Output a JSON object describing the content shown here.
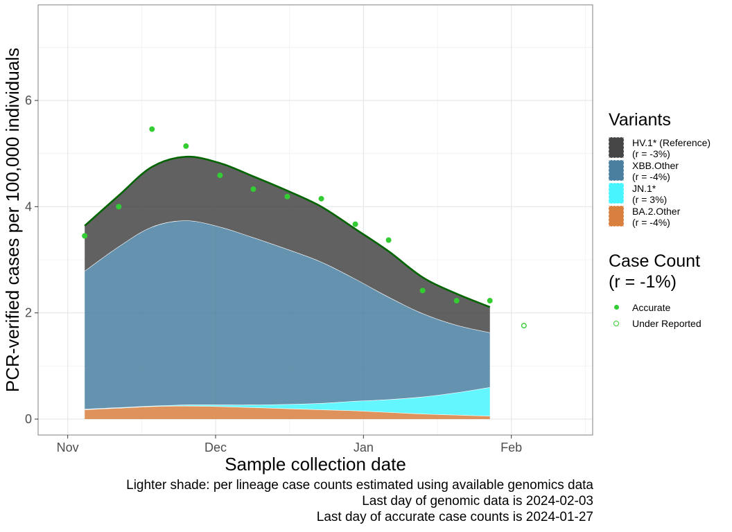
{
  "chart_data": {
    "type": "area",
    "stacked": true,
    "x_axis": {
      "title": "Sample collection date",
      "range": [
        -4,
        71
      ],
      "ticks": [
        {
          "label": "Nov",
          "x": 0
        },
        {
          "label": "Dec",
          "x": 20
        },
        {
          "label": "Jan",
          "x": 40
        },
        {
          "label": "Feb",
          "x": 60
        }
      ],
      "minor_ticks": [
        10,
        30,
        50,
        70
      ]
    },
    "y_axis": {
      "title": "PCR-verified cases per 100,000 individuals",
      "range": [
        -0.3,
        7.8
      ],
      "ticks": [
        0,
        2,
        4,
        6
      ],
      "minor_ticks": [
        1,
        3,
        5,
        7
      ]
    },
    "grid": true,
    "x": [
      2.3,
      6.9,
      11.4,
      16.0,
      20.6,
      25.1,
      29.7,
      34.3,
      38.9,
      43.4,
      48.0,
      52.6,
      57.1
    ],
    "series": [
      {
        "name": "BA.2.Other",
        "r": "(r = -4%)",
        "color": "#d9803f",
        "values": [
          0.18,
          0.21,
          0.24,
          0.25,
          0.24,
          0.22,
          0.2,
          0.18,
          0.16,
          0.13,
          0.1,
          0.08,
          0.06
        ]
      },
      {
        "name": "JN.1*",
        "r": "(r = 3%)",
        "color": "#48f5ff",
        "values": [
          0.01,
          0.01,
          0.01,
          0.02,
          0.03,
          0.05,
          0.08,
          0.12,
          0.18,
          0.24,
          0.32,
          0.42,
          0.54
        ]
      },
      {
        "name": "XBB.Other",
        "r": "(r = -4%)",
        "color": "#4a7fa0",
        "values": [
          2.6,
          3.03,
          3.37,
          3.47,
          3.35,
          3.15,
          2.92,
          2.66,
          2.3,
          1.93,
          1.57,
          1.27,
          1.03
        ]
      },
      {
        "name": "HV.1* (Reference)",
        "r": "(r = -3%)",
        "color": "#454545",
        "values": [
          0.85,
          0.96,
          1.13,
          1.2,
          1.2,
          1.15,
          1.1,
          1.04,
          0.94,
          0.86,
          0.68,
          0.59,
          0.48
        ]
      }
    ],
    "total_line_color": "#006400",
    "case_count": {
      "title": "Case Count",
      "subtitle": "(r = -1%)",
      "accurate": {
        "label": "Accurate",
        "points": [
          [
            2.3,
            3.45
          ],
          [
            6.9,
            4.0
          ],
          [
            11.4,
            5.46
          ],
          [
            16.0,
            5.14
          ],
          [
            20.6,
            4.59
          ],
          [
            25.1,
            4.33
          ],
          [
            29.7,
            4.19
          ],
          [
            34.3,
            4.15
          ],
          [
            38.9,
            3.67
          ],
          [
            43.4,
            3.37
          ],
          [
            48.0,
            2.42
          ],
          [
            52.6,
            2.23
          ],
          [
            57.1,
            2.23
          ]
        ]
      },
      "under_reported": {
        "label": "Under Reported",
        "points": [
          [
            61.7,
            1.76
          ]
        ]
      }
    },
    "legend_title": "Variants",
    "legend_placement": "right"
  },
  "caption": {
    "line1": "Lighter shade: per lineage case counts estimated using available genomics data",
    "line2": "Last day of genomic data is 2024-02-03",
    "line3": "Last day of accurate case counts is 2024-01-27"
  }
}
